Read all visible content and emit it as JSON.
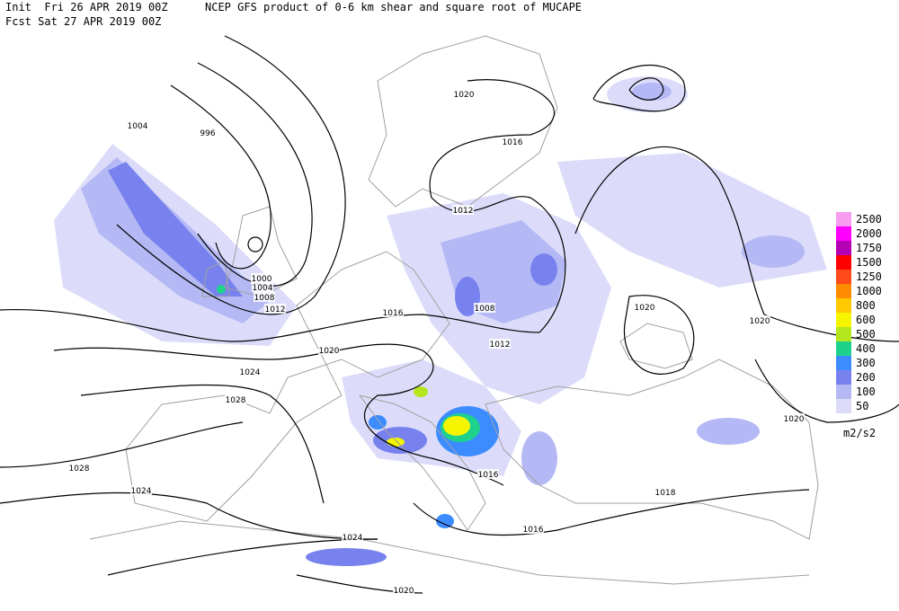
{
  "header": {
    "init": "Init  Fri 26 APR 2019 00Z",
    "product": "NCEP GFS product of 0-6 km shear and square root of MUCAPE",
    "forecast": "Fcst Sat 27 APR 2019 00Z"
  },
  "legend": {
    "unit": "m2/s2",
    "levels": [
      {
        "value": 2500,
        "color": "#f79cf0"
      },
      {
        "value": 2000,
        "color": "#ff00ff"
      },
      {
        "value": 1750,
        "color": "#b400b4"
      },
      {
        "value": 1500,
        "color": "#ff0000"
      },
      {
        "value": 1250,
        "color": "#ff4a1a"
      },
      {
        "value": 1000,
        "color": "#ff8c00"
      },
      {
        "value": 800,
        "color": "#ffc800"
      },
      {
        "value": 600,
        "color": "#f5f500"
      },
      {
        "value": 500,
        "color": "#b4e61e"
      },
      {
        "value": 400,
        "color": "#1ed28c"
      },
      {
        "value": 300,
        "color": "#3c8cff"
      },
      {
        "value": 200,
        "color": "#7882ee"
      },
      {
        "value": 100,
        "color": "#b4b9f5"
      },
      {
        "value": 50,
        "color": "#dcdcfa"
      }
    ]
  },
  "isobar_labels": [
    "1004",
    "996",
    "1020",
    "1016",
    "1012",
    "1000",
    "1004",
    "1008",
    "1012",
    "1016",
    "1008",
    "1012",
    "1020",
    "1020",
    "1020",
    "1024",
    "1028",
    "1020",
    "1028",
    "1016",
    "1024",
    "1018",
    "1016",
    "1024",
    "1020"
  ]
}
